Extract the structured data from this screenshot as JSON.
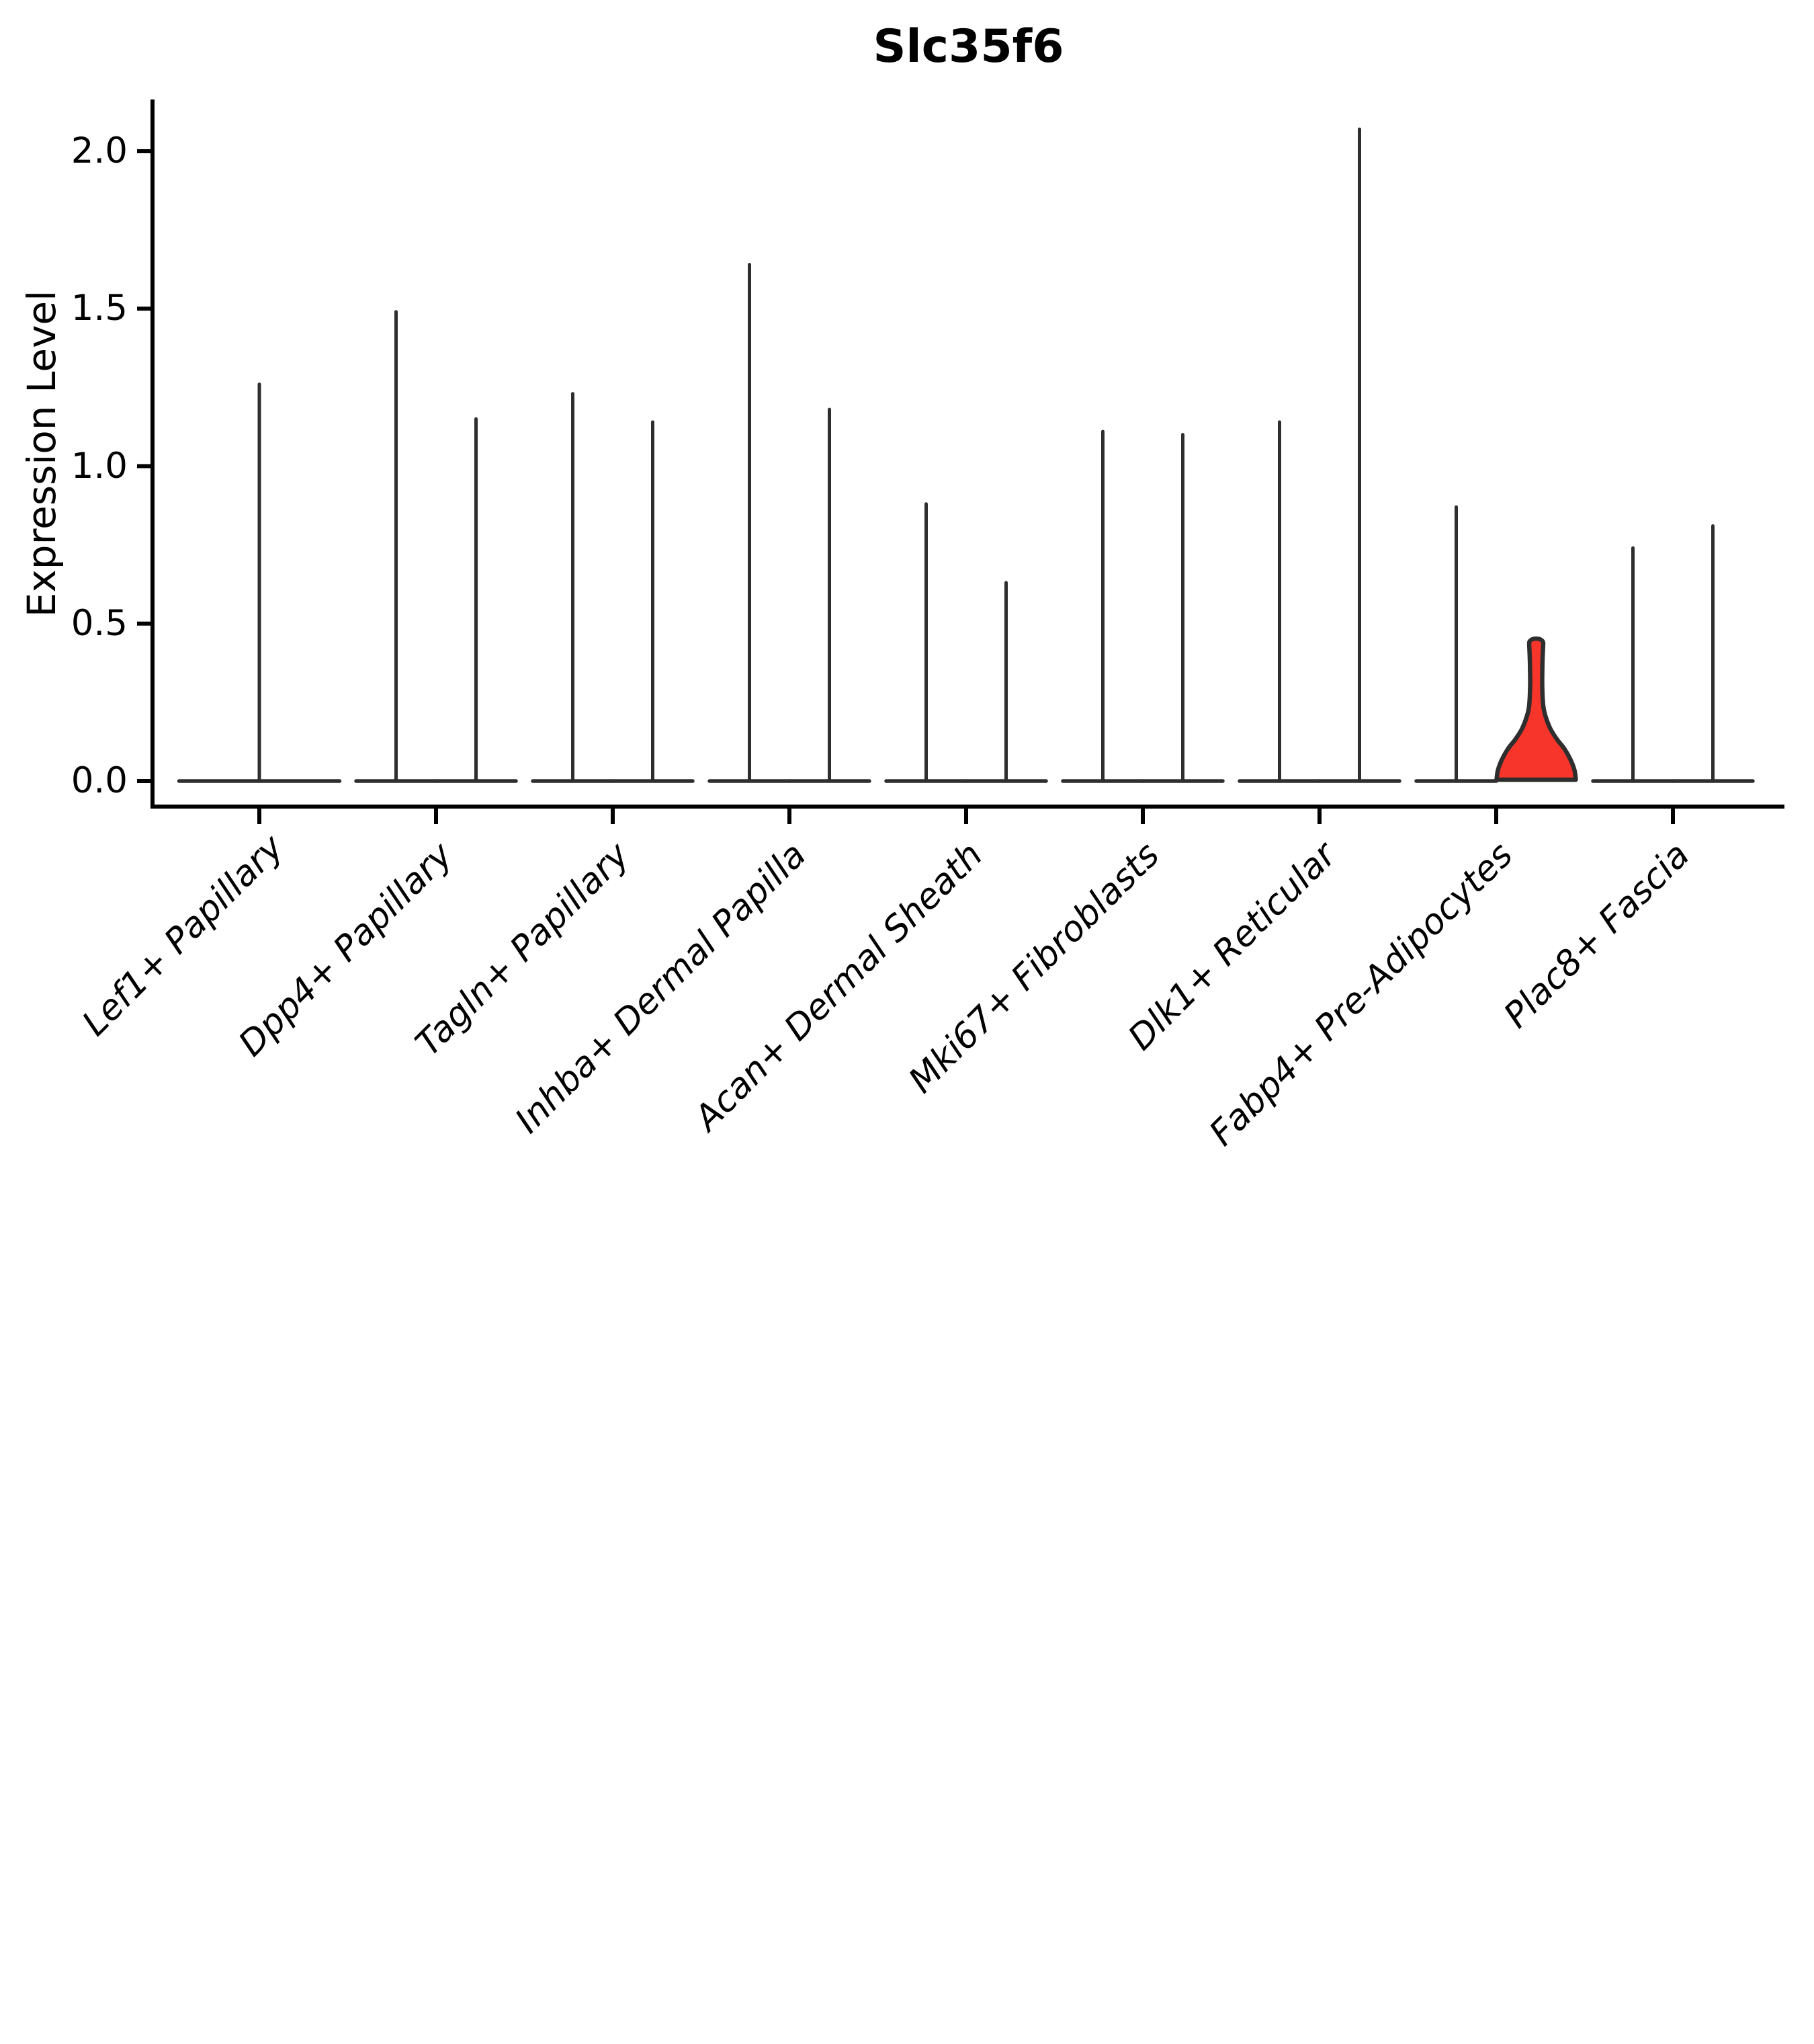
{
  "title": "Slc35f6",
  "axes": {
    "ylabel": "Expression Level",
    "ytick_labels": [
      "0.0",
      "0.5",
      "1.0",
      "1.5",
      "2.0"
    ]
  },
  "colors": {
    "background": "#ffffff",
    "axis": "#000000",
    "violin_line": "#2e2e2e",
    "highlight_fill": "#f8352b",
    "highlight_outline": "#2e2e2e",
    "text": "#000000"
  },
  "chart_data": {
    "type": "violin",
    "title": "Slc35f6",
    "xlabel": "",
    "ylabel": "Expression Level",
    "ylim": [
      0,
      2.16
    ],
    "yticks": [
      0.0,
      0.5,
      1.0,
      1.5,
      2.0
    ],
    "grid": false,
    "legend": "none",
    "note": "Each violin is zero-inflated: a wide flat body at expression 0 with a thin density spike rising to the maximum expression value. Categories 2-9 contain two side-by-side violins; category 1 has a single centered violin. The right violin of Fabp4+ Pre-Adipocytes is highlighted red with a bell-shaped base tapering into a stem.",
    "categories": [
      "Lef1+ Papillary",
      "Dpp4+ Papillary",
      "Tagln+ Papillary",
      "Inhba+ Dermal Papilla",
      "Acan+ Dermal Sheath",
      "Mki67+ Fibroblasts",
      "Dlk1+ Reticular",
      "Fabp4+ Pre-Adipocytes",
      "Plac8+ Fascia"
    ],
    "groups": [
      {
        "category": "Lef1+ Papillary",
        "violins": [
          {
            "position": "center",
            "max_expression": 1.26,
            "highlighted": false
          }
        ]
      },
      {
        "category": "Dpp4+ Papillary",
        "violins": [
          {
            "position": "left",
            "max_expression": 1.49,
            "highlighted": false
          },
          {
            "position": "right",
            "max_expression": 1.15,
            "highlighted": false
          }
        ]
      },
      {
        "category": "Tagln+ Papillary",
        "violins": [
          {
            "position": "left",
            "max_expression": 1.23,
            "highlighted": false
          },
          {
            "position": "right",
            "max_expression": 1.14,
            "highlighted": false
          }
        ]
      },
      {
        "category": "Inhba+ Dermal Papilla",
        "violins": [
          {
            "position": "left",
            "max_expression": 1.64,
            "highlighted": false
          },
          {
            "position": "right",
            "max_expression": 1.18,
            "highlighted": false
          }
        ]
      },
      {
        "category": "Acan+ Dermal Sheath",
        "violins": [
          {
            "position": "left",
            "max_expression": 0.88,
            "highlighted": false
          },
          {
            "position": "right",
            "max_expression": 0.63,
            "highlighted": false
          }
        ]
      },
      {
        "category": "Mki67+ Fibroblasts",
        "violins": [
          {
            "position": "left",
            "max_expression": 1.11,
            "highlighted": false
          },
          {
            "position": "right",
            "max_expression": 1.1,
            "highlighted": false
          }
        ]
      },
      {
        "category": "Dlk1+ Reticular",
        "violins": [
          {
            "position": "left",
            "max_expression": 1.14,
            "highlighted": false
          },
          {
            "position": "right",
            "max_expression": 2.07,
            "highlighted": false
          }
        ]
      },
      {
        "category": "Fabp4+ Pre-Adipocytes",
        "violins": [
          {
            "position": "left",
            "max_expression": 0.87,
            "highlighted": false
          },
          {
            "position": "right",
            "max_expression": 0.45,
            "highlighted": true
          }
        ]
      },
      {
        "category": "Plac8+ Fascia",
        "violins": [
          {
            "position": "left",
            "max_expression": 0.74,
            "highlighted": false
          },
          {
            "position": "right",
            "max_expression": 0.81,
            "highlighted": false
          }
        ]
      }
    ]
  }
}
